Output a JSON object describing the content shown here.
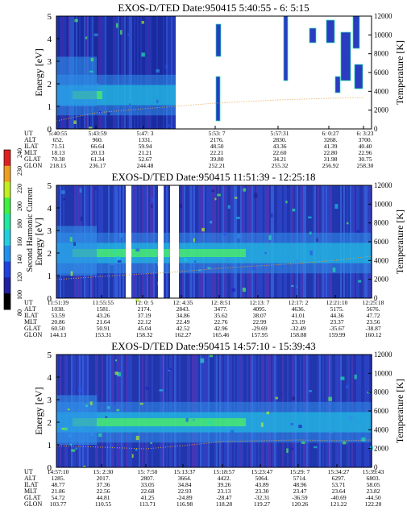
{
  "panels": [
    {
      "title": "EXOS-D/TED   Date:950415  5:40:55 - 6: 5:15",
      "ylabel_left": "Energy [eV]",
      "ylabel_right": "Temperature [K]",
      "left_ticks": [
        "5",
        "4",
        "3",
        "2",
        "1",
        "0"
      ],
      "right_ticks": [
        "12000",
        "10000",
        "8000",
        "6000",
        "4000",
        "2000",
        "0"
      ],
      "table_labels": [
        "UT",
        "ALT",
        "ILAT",
        "MLT",
        "GLAT",
        "GLON"
      ],
      "columns": [
        [
          "5:40:55",
          "652.",
          "71.51",
          "18.13",
          "70.38",
          "218.15"
        ],
        [
          "5:43:59",
          "960.",
          "66.64",
          "20.13",
          "61.34",
          "236.17"
        ],
        [
          "5:47: 3",
          "1331.",
          "59.94",
          "21.21",
          "52.67",
          "244.48"
        ],
        [
          "5:53: 7",
          "2176.",
          "48.50",
          "22.21",
          "39.80",
          "252.21"
        ],
        [
          "5:57:31",
          "2830.",
          "43.36",
          "22.60",
          "34.21",
          "255.32"
        ],
        [
          "6: 0:27",
          "3268.",
          "41.39",
          "22.80",
          "31.98",
          "256.92"
        ],
        [
          "6: 3:23",
          "3700.",
          "40.40",
          "22.96",
          "30.75",
          "258.30"
        ]
      ]
    },
    {
      "title": "EXOS-D/TED   Date:950415  11:51:39 - 12:25:18",
      "ylabel_left": "Energy [eV]",
      "ylabel_right": "Temperature [K]",
      "left_ticks": [
        "5",
        "4",
        "3",
        "2",
        "1",
        "0"
      ],
      "right_ticks": [
        "12000",
        "10000",
        "8000",
        "6000",
        "4000",
        "2000",
        "0"
      ],
      "table_labels": [
        "UT",
        "ALT",
        "ILAT",
        "MLT",
        "GLAT",
        "GLON"
      ],
      "columns": [
        [
          "11:51:39",
          "1038.",
          "53.59",
          "20.86",
          "60.50",
          "144.13"
        ],
        [
          "11:55:55",
          "1581.",
          "43.26",
          "21.64",
          "50.91",
          "153.31"
        ],
        [
          "12: 0: 5",
          "2174.",
          "37.19",
          "22.12",
          "45.04",
          "158.32"
        ],
        [
          "12: 4:35",
          "2843.",
          "34.86",
          "22.49",
          "42.52",
          "162.27"
        ],
        [
          "12: 8:51",
          "3477.",
          "35.62",
          "22.76",
          "42.96",
          "165.46"
        ],
        [
          "12:13: 7",
          "4095.",
          "38.07",
          "22.99",
          "-29.69",
          "157.95"
        ],
        [
          "12:17: 2",
          "4636.",
          "41.01",
          "23.19",
          "-32.49",
          "158.88"
        ],
        [
          "12:21:10",
          "5175.",
          "44.36",
          "23.37",
          "-35.67",
          "159.99"
        ],
        [
          "12:25:18",
          "5676.",
          "47.72",
          "23.56",
          "-38.87",
          "160.12"
        ]
      ]
    },
    {
      "title": "EXOS-D/TED   Date:950415  14:57:10 - 15:39:43",
      "ylabel_left": "Energy [eV]",
      "ylabel_right": "Temperature [K]",
      "left_ticks": [
        "5",
        "4",
        "3",
        "2",
        "1",
        "0"
      ],
      "right_ticks": [
        "12000",
        "10000",
        "8000",
        "6000",
        "4000",
        "2000",
        "0"
      ],
      "table_labels": [
        "UT",
        "ALT",
        "ILAT",
        "MLT",
        "GLAT",
        "GLON"
      ],
      "columns": [
        [
          "14:57:10",
          "1285.",
          "48.77",
          "21.86",
          "54.72",
          "103.77"
        ],
        [
          "15: 2:30",
          "2017.",
          "37.36",
          "22.56",
          "44.81",
          "110.55"
        ],
        [
          "15: 7:50",
          "2807.",
          "33.05",
          "22.68",
          "41.25",
          "113.71"
        ],
        [
          "15:13:37",
          "3664.",
          "34.84",
          "22.93",
          "-24.89",
          "116.98"
        ],
        [
          "15:18:57",
          "4422.",
          "39.26",
          "23.13",
          "-28.47",
          "118.28"
        ],
        [
          "15:23:47",
          "5064.",
          "43.89",
          "23.30",
          "-32.31",
          "119.27"
        ],
        [
          "15:29: 7",
          "5714.",
          "48.96",
          "23.47",
          "-36.59",
          "120.26"
        ],
        [
          "15:34:27",
          "6297.",
          "53.71",
          "23.64",
          "-40.69",
          "121.22"
        ],
        [
          "15:39:43",
          "6803.",
          "58.05",
          "23.82",
          "-44.50",
          "122.20"
        ]
      ]
    }
  ],
  "colorbar": {
    "label": "Second Harmonic Current",
    "ticks": [
      "240",
      "230",
      "220",
      "200",
      "180",
      "160",
      "140",
      "120",
      "100",
      "80"
    ]
  },
  "chart_data": [
    {
      "type": "heatmap",
      "title": "EXOS-D/TED   Date:950415  5:40:55 - 6: 5:15",
      "ylabel": "Energy [eV]",
      "y2label": "Temperature [K]",
      "ylim": [
        0,
        5
      ],
      "y2lim": [
        0,
        12000
      ],
      "x_ticks": [
        "5:40:55",
        "5:43:59",
        "5:47: 3",
        "5:53: 7",
        "5:57:31",
        "6: 0:27",
        "6: 3:23"
      ],
      "colorbar_range": [
        80,
        240
      ]
    },
    {
      "type": "heatmap",
      "title": "EXOS-D/TED   Date:950415  11:51:39 - 12:25:18",
      "ylabel": "Energy [eV]",
      "y2label": "Temperature [K]",
      "ylim": [
        0,
        5
      ],
      "y2lim": [
        0,
        12000
      ],
      "x_ticks": [
        "11:51:39",
        "11:55:55",
        "12: 0: 5",
        "12: 4:35",
        "12: 8:51",
        "12:13: 7",
        "12:17: 2",
        "12:21:10",
        "12:25:18"
      ],
      "colorbar_range": [
        80,
        240
      ]
    },
    {
      "type": "heatmap",
      "title": "EXOS-D/TED   Date:950415  14:57:10 - 15:39:43",
      "ylabel": "Energy [eV]",
      "y2label": "Temperature [K]",
      "ylim": [
        0,
        5
      ],
      "y2lim": [
        0,
        12000
      ],
      "x_ticks": [
        "14:57:10",
        "15: 2:30",
        "15: 7:50",
        "15:13:37",
        "15:18:57",
        "15:23:47",
        "15:29: 7",
        "15:34:27",
        "15:39:43"
      ],
      "colorbar_range": [
        80,
        240
      ]
    }
  ]
}
